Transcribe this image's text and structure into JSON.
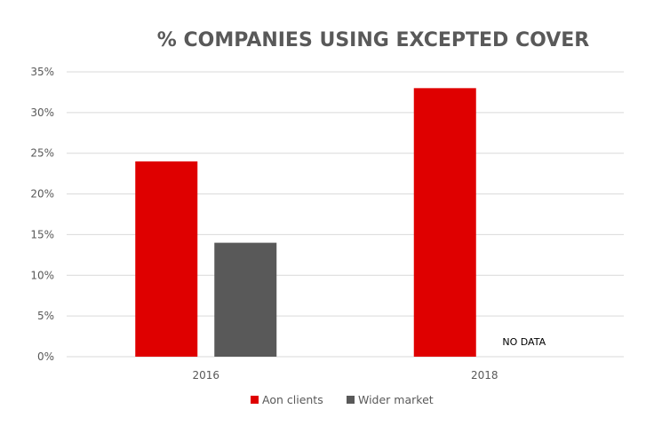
{
  "chart_data": {
    "type": "bar",
    "title": "% COMPANIES USING EXCEPTED COVER",
    "xlabel": "",
    "ylabel": "",
    "categories": [
      "2016",
      "2018"
    ],
    "series": [
      {
        "name": "Aon clients",
        "color": "#DF0000",
        "values": [
          24,
          33
        ]
      },
      {
        "name": "Wider market",
        "color": "#595959",
        "values": [
          14,
          null
        ]
      }
    ],
    "ylim": [
      0,
      35
    ],
    "yticks": [
      0,
      5,
      10,
      15,
      20,
      25,
      30,
      35
    ],
    "ytick_labels": [
      "0%",
      "5%",
      "10%",
      "15%",
      "20%",
      "25%",
      "30%",
      "35%"
    ],
    "grid": true,
    "legend_position": "bottom",
    "annotations": [
      {
        "text": "NO DATA",
        "category": "2018",
        "series": "Wider market"
      }
    ]
  }
}
